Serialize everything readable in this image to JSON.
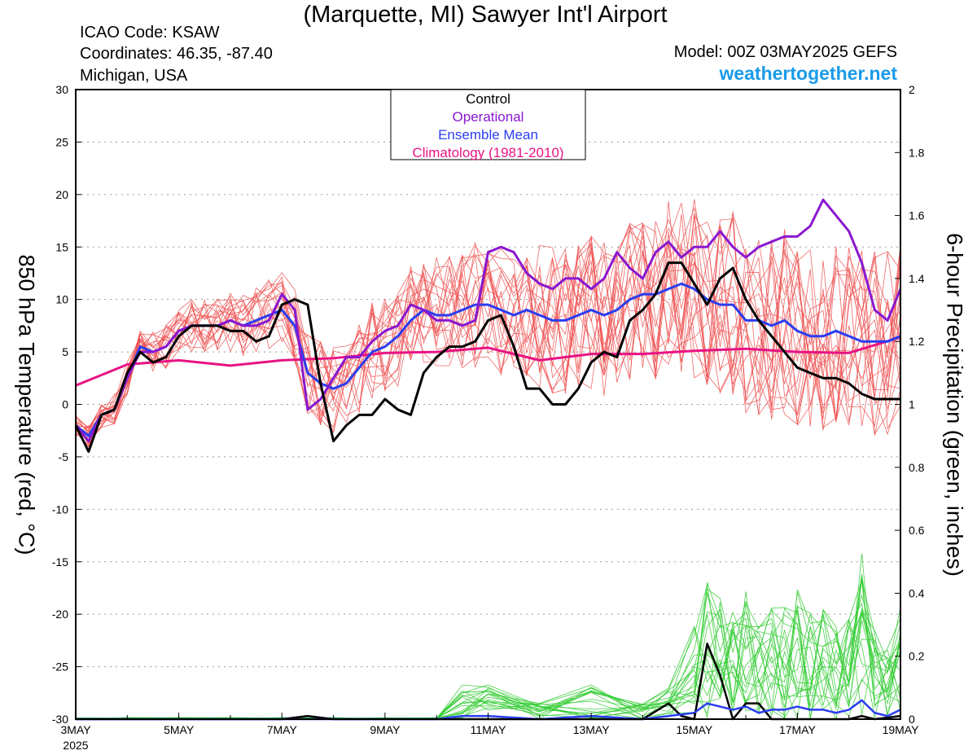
{
  "header": {
    "title": "(Marquette, MI) Sawyer Int'l Airport",
    "icao": "ICAO Code: KSAW",
    "coords": "Coordinates: 46.35, -87.40",
    "region": "Michigan, USA",
    "model": "Model: 00Z 03MAY2025 GEFS",
    "brand": "weathertogether.net"
  },
  "colors": {
    "members": "#ee4d4d",
    "precip_members": "#33cc33",
    "control": "#000000",
    "operational": "#8a17cf",
    "mean": "#2a3df0",
    "climatology": "#e81384"
  },
  "chart_data": {
    "type": "line",
    "xlabel": "",
    "ylabel": "850 hPa Temperature (red, °C)",
    "y2label": "6-hour Precipitation (green, inches)",
    "xlim": [
      0,
      16
    ],
    "ylim": [
      -30,
      30
    ],
    "y2lim": [
      0,
      2
    ],
    "x_ticks": [
      {
        "x": 0,
        "label": "3MAY",
        "sub": "2025"
      },
      {
        "x": 2,
        "label": "5MAY",
        "sub": ""
      },
      {
        "x": 4,
        "label": "7MAY",
        "sub": ""
      },
      {
        "x": 6,
        "label": "9MAY",
        "sub": ""
      },
      {
        "x": 8,
        "label": "11MAY",
        "sub": ""
      },
      {
        "x": 10,
        "label": "13MAY",
        "sub": ""
      },
      {
        "x": 12,
        "label": "15MAY",
        "sub": ""
      },
      {
        "x": 14,
        "label": "17MAY",
        "sub": ""
      },
      {
        "x": 16,
        "label": "19MAY",
        "sub": ""
      }
    ],
    "y_ticks": [
      "30",
      "25",
      "20",
      "15",
      "10",
      "5",
      "0",
      "-5",
      "-10",
      "-15",
      "-20",
      "-25",
      "-30"
    ],
    "y2_ticks": [
      "2",
      "1.8",
      "1.6",
      "1.4",
      "1.2",
      "1",
      "0.8",
      "0.6",
      "0.4",
      "0.2",
      "0"
    ],
    "grid": "horizontal dotted",
    "legend": {
      "position": "top-center",
      "entries": [
        "Control",
        "Operational",
        "Ensemble Mean",
        "Climatology (1981-2010)"
      ]
    },
    "series": [
      {
        "name": "Control",
        "axis": "temp",
        "x": [
          0,
          0.25,
          0.5,
          0.75,
          1,
          1.25,
          1.5,
          1.75,
          2,
          2.25,
          2.5,
          2.75,
          3,
          3.25,
          3.5,
          3.75,
          4,
          4.25,
          4.5,
          4.75,
          5,
          5.25,
          5.5,
          5.75,
          6,
          6.25,
          6.5,
          6.75,
          7,
          7.25,
          7.5,
          7.75,
          8,
          8.25,
          8.5,
          8.75,
          9,
          9.25,
          9.5,
          9.75,
          10,
          10.25,
          10.5,
          10.75,
          11,
          11.25,
          11.5,
          11.75,
          12,
          12.25,
          12.5,
          12.75,
          13,
          13.25,
          13.5,
          13.75,
          14,
          14.25,
          14.5,
          14.75,
          15,
          15.25,
          15.5,
          15.75,
          16
        ],
        "values": [
          -2,
          -4.5,
          -1,
          -0.5,
          3,
          5,
          4,
          4.5,
          6.5,
          7.5,
          7.5,
          7.5,
          7,
          7,
          6,
          6.5,
          9.5,
          10,
          9.5,
          2,
          -3.5,
          -2,
          -1,
          -1,
          0.5,
          -0.5,
          -1,
          3,
          4.5,
          5.5,
          5.5,
          6,
          8,
          8.5,
          5.5,
          1.5,
          1.5,
          0,
          0,
          1.5,
          4,
          5,
          4.5,
          8,
          9,
          10.5,
          13.5,
          13.5,
          11.5,
          9.5,
          12,
          13,
          10,
          8,
          6.5,
          5,
          3.5,
          3,
          2.5,
          2.5,
          2,
          1,
          0.5,
          0.5,
          0.5
        ]
      },
      {
        "name": "Operational",
        "axis": "temp",
        "x": [
          0,
          0.25,
          0.5,
          0.75,
          1,
          1.25,
          1.5,
          1.75,
          2,
          2.25,
          2.5,
          2.75,
          3,
          3.25,
          3.5,
          3.75,
          4,
          4.25,
          4.5,
          4.75,
          5,
          5.25,
          5.5,
          5.75,
          6,
          6.25,
          6.5,
          6.75,
          7,
          7.25,
          7.5,
          7.75,
          8,
          8.25,
          8.5,
          8.75,
          9,
          9.25,
          9.5,
          9.75,
          10,
          10.25,
          10.5,
          10.75,
          11,
          11.25,
          11.5,
          11.75,
          12,
          12.25,
          12.5,
          12.75,
          13,
          13.25,
          13.5,
          13.75,
          14,
          14.25,
          14.5,
          14.75,
          15,
          15.25,
          15.5,
          15.75,
          16
        ],
        "values": [
          -2,
          -3.5,
          -1,
          -0.5,
          2.5,
          5,
          5,
          5.5,
          7,
          7.5,
          7.5,
          7.5,
          8,
          7.5,
          7.5,
          8,
          10.5,
          9,
          -0.5,
          0.5,
          2.5,
          4.5,
          4.5,
          6,
          7,
          7.5,
          9.5,
          9,
          8,
          8,
          7.5,
          8,
          14.5,
          15,
          14.5,
          12.5,
          11.5,
          11,
          12,
          12,
          11,
          12,
          14.5,
          13,
          12,
          14.5,
          15.5,
          14,
          15,
          15,
          16.5,
          15,
          14,
          15,
          15.5,
          16,
          16,
          17,
          19.5,
          18,
          16.5,
          13.5,
          9,
          8,
          11
        ]
      },
      {
        "name": "Ensemble Mean",
        "axis": "temp",
        "x": [
          0,
          0.25,
          0.5,
          0.75,
          1,
          1.25,
          1.5,
          1.75,
          2,
          2.25,
          2.5,
          2.75,
          3,
          3.25,
          3.5,
          3.75,
          4,
          4.25,
          4.5,
          4.75,
          5,
          5.25,
          5.5,
          5.75,
          6,
          6.25,
          6.5,
          6.75,
          7,
          7.25,
          7.5,
          7.75,
          8,
          8.25,
          8.5,
          8.75,
          9,
          9.25,
          9.5,
          9.75,
          10,
          10.25,
          10.5,
          10.75,
          11,
          11.25,
          11.5,
          11.75,
          12,
          12.25,
          12.5,
          12.75,
          13,
          13.25,
          13.5,
          13.75,
          14,
          14.25,
          14.5,
          14.75,
          15,
          15.25,
          15.5,
          15.75,
          16
        ],
        "values": [
          -2,
          -3,
          -1,
          -0.5,
          2.5,
          5.5,
          5,
          5.5,
          7,
          7.5,
          7.5,
          7.5,
          8,
          7.5,
          8,
          8.5,
          9,
          7.5,
          3,
          2,
          1.5,
          2,
          3.5,
          5,
          5.5,
          6.5,
          8,
          9,
          8.5,
          8.5,
          9,
          9.5,
          9.5,
          9,
          8.5,
          9,
          8.5,
          8,
          8,
          8.5,
          9,
          8.5,
          9,
          10,
          10.5,
          10.5,
          11,
          11.5,
          11,
          10,
          9.5,
          9.5,
          8,
          8,
          7.5,
          8,
          7,
          6.5,
          6.5,
          7,
          6.5,
          6,
          6,
          6,
          6.5
        ]
      },
      {
        "name": "Climatology (1981-2010)",
        "axis": "temp",
        "x": [
          0,
          1,
          2,
          3,
          4,
          5,
          6,
          7,
          8,
          9,
          10,
          11,
          12,
          13,
          14,
          15,
          16
        ],
        "values": [
          1.8,
          3.8,
          4.2,
          3.7,
          4.2,
          4.4,
          4.9,
          5.0,
          5.4,
          4.2,
          4.8,
          4.8,
          5.1,
          5.3,
          5.0,
          4.9,
          6.4
        ]
      },
      {
        "name": "Control",
        "axis": "precip",
        "x": [
          0,
          1,
          2,
          3,
          4,
          4.5,
          5,
          6,
          7,
          8,
          9,
          10,
          11,
          11.5,
          11.75,
          12,
          12.25,
          12.5,
          12.75,
          13,
          13.25,
          13.5,
          14,
          14.5,
          15,
          15.25,
          15.5,
          16
        ],
        "values": [
          0,
          0,
          0,
          0,
          0,
          0.01,
          0,
          0,
          0,
          0,
          0,
          0,
          0,
          0.05,
          0.01,
          0,
          0.24,
          0.14,
          0,
          0.05,
          0.05,
          0,
          0,
          0,
          0,
          0.01,
          0,
          0.01
        ]
      },
      {
        "name": "Ensemble Mean",
        "axis": "precip",
        "x": [
          0,
          1,
          2,
          3,
          4,
          5,
          6,
          7,
          7.5,
          8,
          9,
          10,
          11,
          11.5,
          12,
          12.25,
          12.5,
          12.75,
          13,
          13.25,
          13.5,
          13.75,
          14,
          14.25,
          14.5,
          14.75,
          15,
          15.25,
          15.5,
          15.75,
          16
        ],
        "values": [
          0,
          0,
          0,
          0,
          0,
          0,
          0,
          0,
          0.01,
          0.01,
          0,
          0.01,
          0,
          0.01,
          0.02,
          0.05,
          0.04,
          0.03,
          0.04,
          0.02,
          0.03,
          0.03,
          0.04,
          0.03,
          0.03,
          0.02,
          0.03,
          0.06,
          0.02,
          0.01,
          0.03
        ]
      }
    ]
  }
}
